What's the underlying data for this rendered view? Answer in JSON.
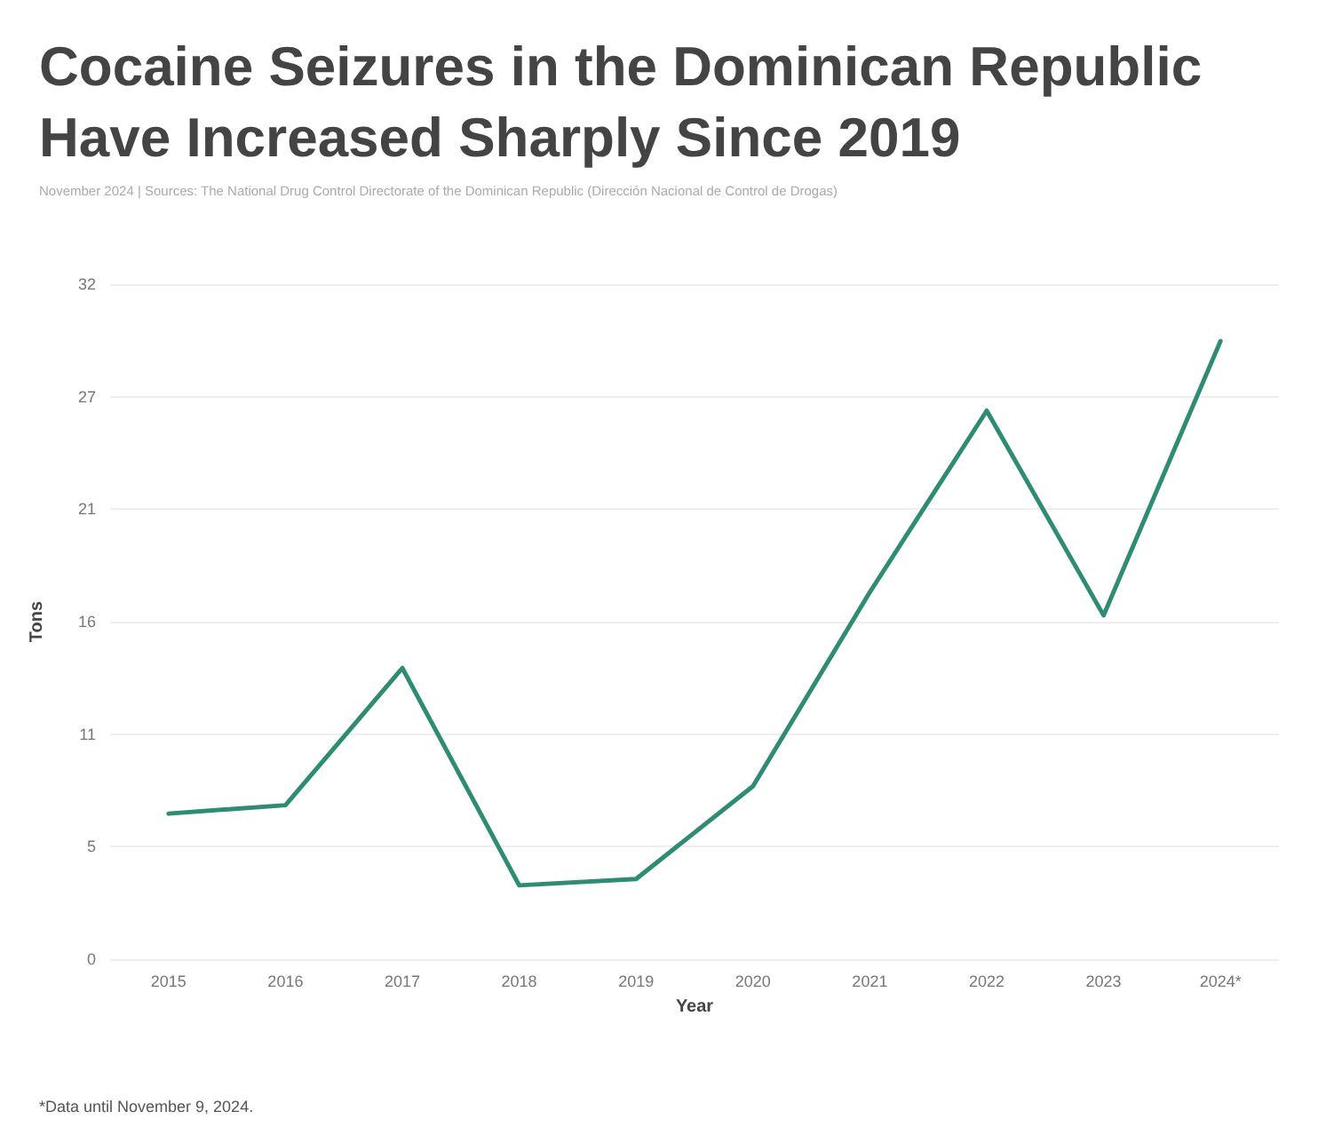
{
  "chart_data": {
    "type": "line",
    "title": "Cocaine Seizures in the Dominican Republic Have Increased Sharply Since 2019",
    "subtitle": "November 2024 | Sources: The National Drug Control Directorate of the Dominican Republic (Dirección Nacional de Control de Drogas)",
    "xlabel": "Year",
    "ylabel": "Tons",
    "categories": [
      "2015",
      "2016",
      "2017",
      "2018",
      "2019",
      "2020",
      "2021",
      "2022",
      "2023",
      "2024*"
    ],
    "series": [
      {
        "color": "#2e8b74",
        "values": [
          6.9,
          7.3,
          13.8,
          3.5,
          3.8,
          8.2,
          17.4,
          26.0,
          16.3,
          29.3
        ]
      }
    ],
    "ylim": [
      0,
      32
    ],
    "yticks": [
      0,
      {
        "value": 5.333,
        "label": "5"
      },
      {
        "value": 10.667,
        "label": "11"
      },
      16,
      {
        "value": 21.333,
        "label": "21"
      },
      {
        "value": 26.667,
        "label": "27"
      },
      32
    ],
    "grid": "y",
    "marker": "none",
    "line_style": "solid",
    "annotations": [
      "*Data until November 9, 2024."
    ]
  }
}
